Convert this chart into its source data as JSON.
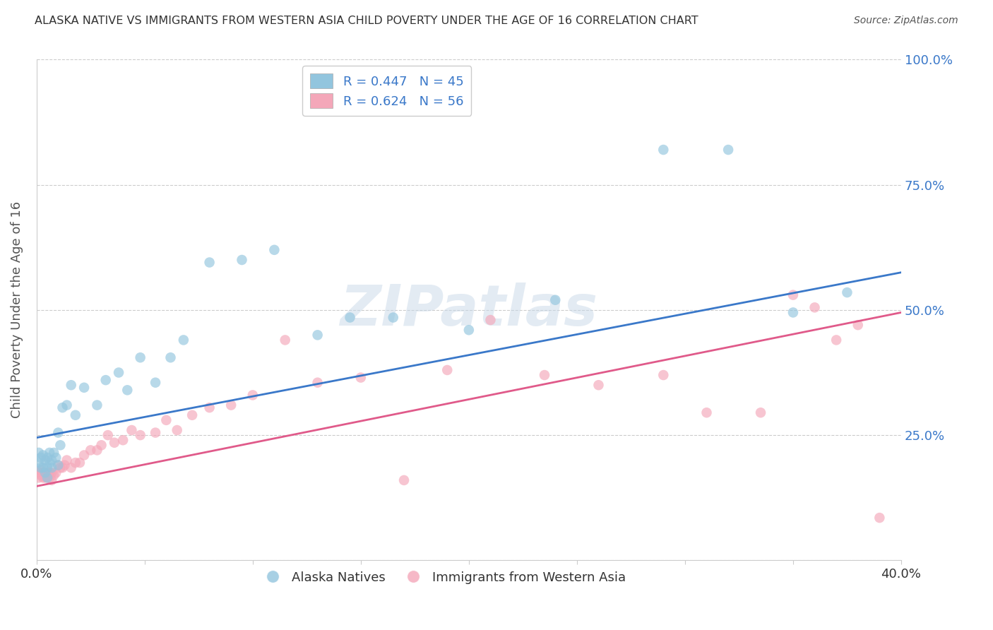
{
  "title": "ALASKA NATIVE VS IMMIGRANTS FROM WESTERN ASIA CHILD POVERTY UNDER THE AGE OF 16 CORRELATION CHART",
  "source": "Source: ZipAtlas.com",
  "ylabel_label": "Child Poverty Under the Age of 16",
  "x_min": 0.0,
  "x_max": 0.4,
  "y_min": 0.0,
  "y_max": 1.0,
  "y_ticks": [
    0.0,
    0.25,
    0.5,
    0.75,
    1.0
  ],
  "y_tick_labels": [
    "",
    "25.0%",
    "50.0%",
    "75.0%",
    "100.0%"
  ],
  "x_tick_positions": [
    0.0,
    0.05,
    0.1,
    0.15,
    0.2,
    0.25,
    0.3,
    0.35,
    0.4
  ],
  "x_tick_labels": [
    "0.0%",
    "",
    "",
    "",
    "",
    "",
    "",
    "",
    "40.0%"
  ],
  "blue_R": 0.447,
  "blue_N": 45,
  "pink_R": 0.624,
  "pink_N": 56,
  "blue_color": "#92c5de",
  "pink_color": "#f4a7b9",
  "blue_line_color": "#3a78c9",
  "pink_line_color": "#e05a8a",
  "legend_label_blue": "Alaska Natives",
  "legend_label_pink": "Immigrants from Western Asia",
  "watermark": "ZIPatlas",
  "blue_line_x0": 0.0,
  "blue_line_y0": 0.245,
  "blue_line_x1": 0.4,
  "blue_line_y1": 0.575,
  "pink_line_x0": 0.0,
  "pink_line_y0": 0.148,
  "pink_line_x1": 0.4,
  "pink_line_y1": 0.495,
  "blue_scatter_x": [
    0.001,
    0.001,
    0.002,
    0.002,
    0.003,
    0.003,
    0.004,
    0.004,
    0.005,
    0.005,
    0.005,
    0.006,
    0.006,
    0.007,
    0.007,
    0.008,
    0.009,
    0.01,
    0.01,
    0.011,
    0.012,
    0.014,
    0.016,
    0.018,
    0.022,
    0.028,
    0.032,
    0.038,
    0.042,
    0.048,
    0.055,
    0.062,
    0.068,
    0.08,
    0.095,
    0.11,
    0.13,
    0.145,
    0.165,
    0.2,
    0.24,
    0.29,
    0.32,
    0.35,
    0.375
  ],
  "blue_scatter_y": [
    0.215,
    0.195,
    0.205,
    0.185,
    0.21,
    0.185,
    0.2,
    0.175,
    0.205,
    0.185,
    0.165,
    0.195,
    0.215,
    0.185,
    0.2,
    0.215,
    0.205,
    0.19,
    0.255,
    0.23,
    0.305,
    0.31,
    0.35,
    0.29,
    0.345,
    0.31,
    0.36,
    0.375,
    0.34,
    0.405,
    0.355,
    0.405,
    0.44,
    0.595,
    0.6,
    0.62,
    0.45,
    0.485,
    0.485,
    0.46,
    0.52,
    0.82,
    0.82,
    0.495,
    0.535
  ],
  "pink_scatter_x": [
    0.001,
    0.001,
    0.002,
    0.002,
    0.003,
    0.003,
    0.004,
    0.004,
    0.005,
    0.005,
    0.006,
    0.006,
    0.007,
    0.007,
    0.008,
    0.009,
    0.01,
    0.011,
    0.012,
    0.013,
    0.014,
    0.016,
    0.018,
    0.02,
    0.022,
    0.025,
    0.028,
    0.03,
    0.033,
    0.036,
    0.04,
    0.044,
    0.048,
    0.055,
    0.06,
    0.065,
    0.072,
    0.08,
    0.09,
    0.1,
    0.115,
    0.13,
    0.15,
    0.17,
    0.19,
    0.21,
    0.235,
    0.26,
    0.29,
    0.31,
    0.335,
    0.35,
    0.36,
    0.37,
    0.38,
    0.39
  ],
  "pink_scatter_y": [
    0.175,
    0.165,
    0.18,
    0.17,
    0.175,
    0.165,
    0.175,
    0.165,
    0.175,
    0.165,
    0.175,
    0.165,
    0.175,
    0.16,
    0.17,
    0.175,
    0.19,
    0.185,
    0.185,
    0.19,
    0.2,
    0.185,
    0.195,
    0.195,
    0.21,
    0.22,
    0.22,
    0.23,
    0.25,
    0.235,
    0.24,
    0.26,
    0.25,
    0.255,
    0.28,
    0.26,
    0.29,
    0.305,
    0.31,
    0.33,
    0.44,
    0.355,
    0.365,
    0.16,
    0.38,
    0.48,
    0.37,
    0.35,
    0.37,
    0.295,
    0.295,
    0.53,
    0.505,
    0.44,
    0.47,
    0.085
  ],
  "background_color": "#ffffff",
  "grid_color": "#cccccc",
  "title_color": "#333333",
  "axis_label_color": "#555555"
}
